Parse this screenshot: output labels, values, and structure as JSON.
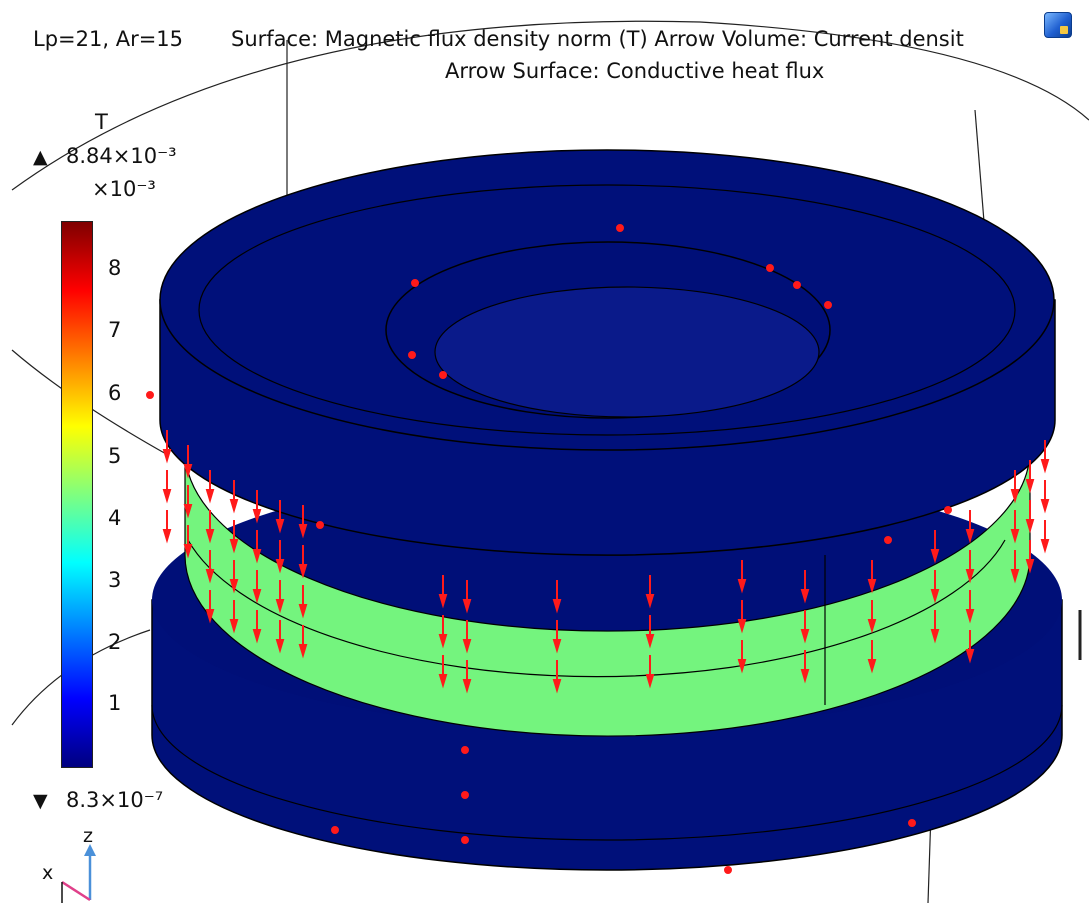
{
  "plot": {
    "parameter_text": "Lp=21, Ar=15",
    "title_line1": "Surface: Magnetic flux density norm (T)  Arrow Volume: Current densit",
    "title_line2": "Arrow Surface: Conductive heat flux"
  },
  "colorbar": {
    "unit": "T",
    "max_symbol": "▲",
    "max_value": "8.84×10⁻³",
    "multiplier": "×10⁻³",
    "min_symbol": "▼",
    "min_value": "8.3×10⁻⁷",
    "ticks": [
      "8",
      "7",
      "6",
      "5",
      "4",
      "3",
      "2",
      "1"
    ],
    "colormap": "rainbow",
    "colors": {
      "low": "#00007f",
      "high": "#7f0000"
    }
  },
  "axes_triad": {
    "z_label": "z",
    "x_label": "x"
  },
  "colors": {
    "domain_blue": "#00107a",
    "band_green": "#74f47e",
    "arrow_red": "#ff1a1a",
    "edge_line": "#000000"
  },
  "toolbar": {
    "icon": "render-options-icon"
  }
}
